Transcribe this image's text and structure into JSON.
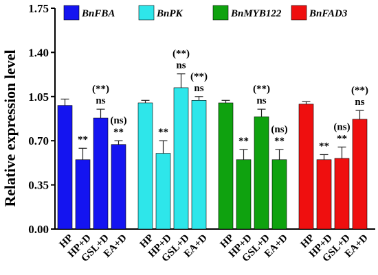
{
  "chart_data": {
    "type": "bar",
    "ylabel": "Relative expression level",
    "ylim": [
      0,
      1.75
    ],
    "yticks": [
      "0.00",
      "0.35",
      "0.70",
      "1.05",
      "1.40",
      "1.75"
    ],
    "categories": [
      "HP",
      "HP+D",
      "GSL+D",
      "EA+D"
    ],
    "legend_position": "top",
    "grid": false,
    "series": [
      {
        "name": "BnFBA",
        "color": "#1414f0",
        "values": [
          0.98,
          0.55,
          0.88,
          0.67
        ],
        "errors": [
          0.05,
          0.09,
          0.07,
          0.03
        ],
        "annotations": [
          [
            "",
            ""
          ],
          [
            "**",
            ""
          ],
          [
            "ns",
            "(**)"
          ],
          [
            "**",
            "(ns)"
          ]
        ]
      },
      {
        "name": "BnPK",
        "color": "#2ee6ea",
        "values": [
          1.0,
          0.6,
          1.12,
          1.02
        ],
        "errors": [
          0.02,
          0.1,
          0.11,
          0.03
        ],
        "annotations": [
          [
            "",
            ""
          ],
          [
            "**",
            ""
          ],
          [
            "ns",
            "(**)"
          ],
          [
            "ns",
            "(**)"
          ]
        ]
      },
      {
        "name": "BnMYB122",
        "color": "#0fa20f",
        "values": [
          1.0,
          0.55,
          0.89,
          0.55
        ],
        "errors": [
          0.02,
          0.08,
          0.06,
          0.08
        ],
        "annotations": [
          [
            "",
            ""
          ],
          [
            "**",
            ""
          ],
          [
            "ns",
            "(**)"
          ],
          [
            "**",
            "(ns)"
          ]
        ]
      },
      {
        "name": "BnFAD3",
        "color": "#ef0f0f",
        "values": [
          0.99,
          0.55,
          0.56,
          0.87
        ],
        "errors": [
          0.02,
          0.04,
          0.09,
          0.07
        ],
        "annotations": [
          [
            "",
            ""
          ],
          [
            "**",
            ""
          ],
          [
            "**",
            "(ns)"
          ],
          [
            "ns",
            "(**)"
          ]
        ]
      }
    ]
  }
}
